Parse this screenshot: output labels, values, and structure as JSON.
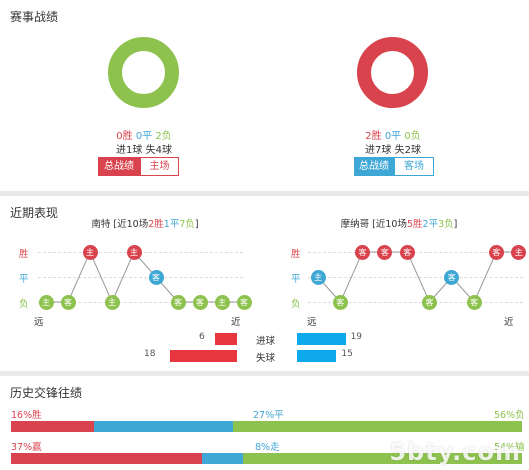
{
  "colors": {
    "win": "#d9434e",
    "draw": "#3fa7d6",
    "loss": "#8ec24f",
    "bar_red": "#e8363e",
    "bar_blue": "#0ea9ea"
  },
  "section1": {
    "title": "赛事战绩",
    "left": {
      "record": {
        "wins": "0胜",
        "draws": "0平",
        "losses": "2负"
      },
      "goals": "进1球  失4球",
      "buttons": {
        "total": "总战绩",
        "side": "主场"
      },
      "donut_color": "#8ec24f"
    },
    "right": {
      "record": {
        "wins": "2胜",
        "draws": "0平",
        "losses": "0负"
      },
      "goals": "进7球  失2球",
      "buttons": {
        "total": "总战绩",
        "side": "客场"
      },
      "donut_color": "#d9434e"
    }
  },
  "section2": {
    "title": "近期表现",
    "left": {
      "team": "南特",
      "summary_pre": " [近10场",
      "wins": "2胜",
      "draws": "1平",
      "losses": "7负",
      "summary_post": "]",
      "row_labels": {
        "win": "胜",
        "draw": "平",
        "loss": "负"
      },
      "far": "远",
      "near": "近",
      "form": [
        {
          "result": "L",
          "venue": "主"
        },
        {
          "result": "L",
          "venue": "客"
        },
        {
          "result": "W",
          "venue": "主"
        },
        {
          "result": "L",
          "venue": "主"
        },
        {
          "result": "W",
          "venue": "主"
        },
        {
          "result": "D",
          "venue": "客"
        },
        {
          "result": "L",
          "venue": "客"
        },
        {
          "result": "L",
          "venue": "客"
        },
        {
          "result": "L",
          "venue": "主"
        },
        {
          "result": "L",
          "venue": "客"
        }
      ]
    },
    "right": {
      "team": "摩纳哥",
      "summary_pre": " [近10场",
      "wins": "5胜",
      "draws": "2平",
      "losses": "3负",
      "summary_post": "]",
      "row_labels": {
        "win": "胜",
        "draw": "平",
        "loss": "负"
      },
      "far": "远",
      "near": "近",
      "form": [
        {
          "result": "D",
          "venue": "主"
        },
        {
          "result": "L",
          "venue": "客"
        },
        {
          "result": "W",
          "venue": "客"
        },
        {
          "result": "W",
          "venue": "客"
        },
        {
          "result": "W",
          "venue": "客"
        },
        {
          "result": "L",
          "venue": "客"
        },
        {
          "result": "D",
          "venue": "客"
        },
        {
          "result": "L",
          "venue": "客"
        },
        {
          "result": "W",
          "venue": "客"
        },
        {
          "result": "W",
          "venue": "主"
        }
      ]
    },
    "goals": {
      "scored_label": "进球",
      "conceded_label": "失球",
      "left_scored": 6,
      "left_conceded": 18,
      "right_scored": 19,
      "right_conceded": 15
    }
  },
  "section3": {
    "title": "历史交锋往绩",
    "row1": {
      "left": "16%胜",
      "mid": "27%平",
      "right": "56%负",
      "segments": [
        16,
        27,
        56
      ]
    },
    "row2": {
      "left": "37%赢",
      "mid": "8%走",
      "right": "54%输",
      "segments": [
        37,
        8,
        54
      ]
    }
  },
  "watermark": "5btycom"
}
